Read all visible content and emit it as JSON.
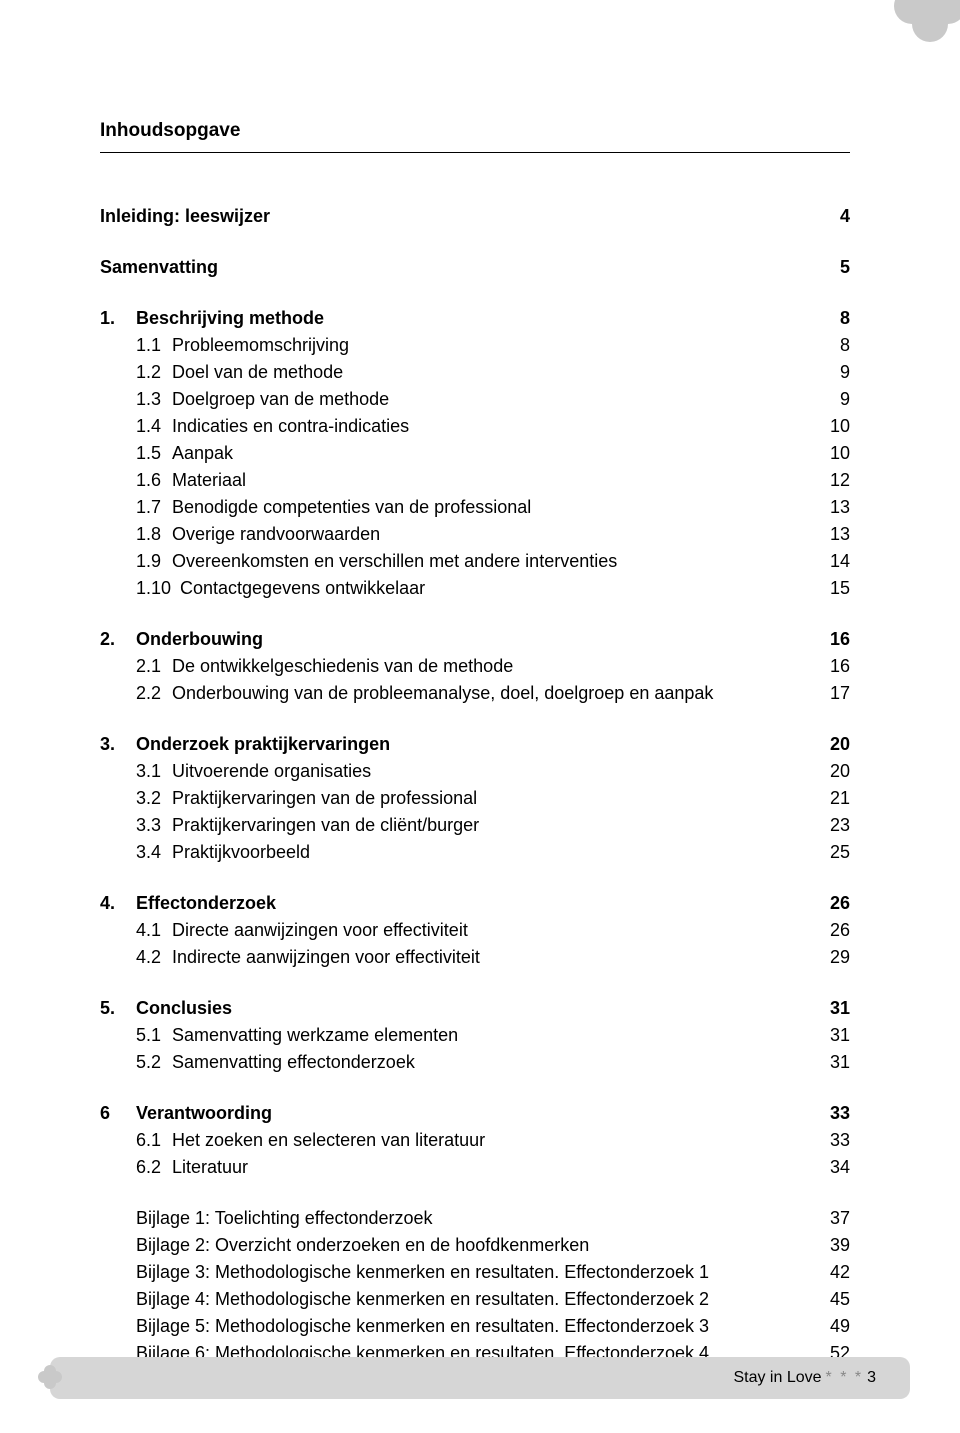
{
  "title": "Inhoudsopgave",
  "intro": [
    {
      "label": "Inleiding: leeswijzer",
      "page": "4",
      "bold": true
    },
    {
      "label": "Samenvatting",
      "page": "5",
      "bold": true
    }
  ],
  "sections": [
    {
      "num": "1.",
      "title": "Beschrijving methode",
      "page": "8",
      "items": [
        {
          "num": "1.1",
          "label": "Probleemomschrijving",
          "page": "8"
        },
        {
          "num": "1.2",
          "label": "Doel van de methode",
          "page": "9"
        },
        {
          "num": "1.3",
          "label": "Doelgroep van de methode",
          "page": "9"
        },
        {
          "num": "1.4",
          "label": "Indicaties en contra-indicaties",
          "page": "10"
        },
        {
          "num": "1.5",
          "label": "Aanpak",
          "page": "10"
        },
        {
          "num": "1.6",
          "label": "Materiaal",
          "page": "12"
        },
        {
          "num": "1.7",
          "label": "Benodigde competenties van de professional",
          "page": "13"
        },
        {
          "num": "1.8",
          "label": "Overige randvoorwaarden",
          "page": "13"
        },
        {
          "num": "1.9",
          "label": "Overeenkomsten en verschillen met andere interventies",
          "page": "14"
        },
        {
          "num": "1.10",
          "label": "Contactgegevens ontwikkelaar",
          "page": "15"
        }
      ]
    },
    {
      "num": "2.",
      "title": "Onderbouwing",
      "page": "16",
      "items": [
        {
          "num": "2.1",
          "label": "De ontwikkelgeschiedenis van de methode",
          "page": "16"
        },
        {
          "num": "2.2",
          "label": "Onderbouwing van de probleemanalyse, doel, doelgroep en aanpak",
          "page": "17"
        }
      ]
    },
    {
      "num": "3.",
      "title": "Onderzoek praktijkervaringen",
      "page": "20",
      "items": [
        {
          "num": "3.1",
          "label": "Uitvoerende organisaties",
          "page": "20"
        },
        {
          "num": "3.2",
          "label": "Praktijkervaringen van de professional",
          "page": "21"
        },
        {
          "num": "3.3",
          "label": "Praktijkervaringen van de cliënt/burger",
          "page": "23"
        },
        {
          "num": "3.4",
          "label": "Praktijkvoorbeeld",
          "page": "25"
        }
      ]
    },
    {
      "num": "4.",
      "title": "Effectonderzoek",
      "page": "26",
      "items": [
        {
          "num": "4.1",
          "label": "Directe aanwijzingen voor effectiviteit",
          "page": "26"
        },
        {
          "num": "4.2",
          "label": "Indirecte aanwijzingen voor effectiviteit",
          "page": "29"
        }
      ]
    },
    {
      "num": "5.",
      "title": "Conclusies",
      "page": "31",
      "items": [
        {
          "num": "5.1",
          "label": "Samenvatting werkzame elementen",
          "page": "31"
        },
        {
          "num": "5.2",
          "label": "Samenvatting effectonderzoek",
          "page": "31"
        }
      ]
    },
    {
      "num": "6",
      "title": "Verantwoording",
      "page": "33",
      "items": [
        {
          "num": "6.1",
          "label": "Het zoeken en selecteren van literatuur",
          "page": "33"
        },
        {
          "num": "6.2",
          "label": "Literatuur",
          "page": "34"
        }
      ]
    }
  ],
  "appendices": [
    {
      "label": "Bijlage 1: Toelichting effectonderzoek",
      "page": "37"
    },
    {
      "label": "Bijlage 2: Overzicht onderzoeken en de hoofdkenmerken",
      "page": "39"
    },
    {
      "label": "Bijlage 3: Methodologische kenmerken en resultaten. Effectonderzoek 1",
      "page": "42"
    },
    {
      "label": "Bijlage 4: Methodologische kenmerken en resultaten. Effectonderzoek 2",
      "page": "45"
    },
    {
      "label": "Bijlage 5: Methodologische kenmerken en resultaten. Effectonderzoek 3",
      "page": "49"
    },
    {
      "label": "Bijlage 6: Methodologische kenmerken en resultaten. Effectonderzoek 4",
      "page": "52"
    }
  ],
  "footer": {
    "text": "Stay in Love",
    "sep": "* * *",
    "page": "3"
  },
  "colors": {
    "shape": "#c9c9c9",
    "footer_bg": "#d6d6d6"
  }
}
